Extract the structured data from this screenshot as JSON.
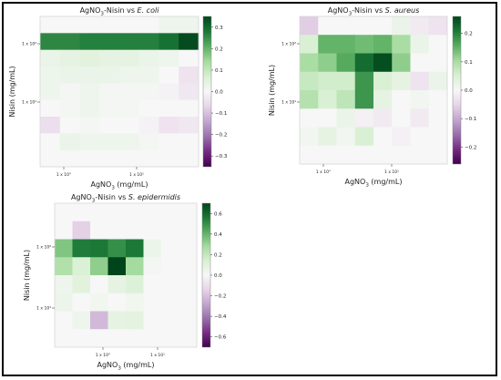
{
  "chart_data": [
    {
      "type": "heatmap",
      "title_parts": {
        "pre": "AgNO",
        "sub": "3",
        "post": "-Nisin vs ",
        "italic": "E. coli"
      },
      "xlabel_parts": {
        "pre": "AgNO",
        "sub": "3",
        "post": " (mg/mL)"
      },
      "ylabel": "Nisin (mg/mL)",
      "x_ticks": [
        "1 x 10°",
        "1 x 10¹"
      ],
      "y_ticks": [
        "1 x 10²",
        "1 x 10¹"
      ],
      "colorbar_ticks": [
        "0.3",
        "0.2",
        "0.1",
        "0.0",
        "−0.1",
        "−0.2",
        "−0.3"
      ],
      "vmin": -0.35,
      "vmax": 0.35,
      "values": [
        [
          0,
          0,
          0,
          0,
          0,
          0,
          0.02,
          0.02
        ],
        [
          0.26,
          0.26,
          0.27,
          0.27,
          0.27,
          0.27,
          0.29,
          0.34
        ],
        [
          0.03,
          0.04,
          0.05,
          0.04,
          0.04,
          0.03,
          0.02,
          0
        ],
        [
          0.02,
          0.03,
          0.03,
          0.03,
          0.02,
          0.02,
          0,
          -0.04
        ],
        [
          0.02,
          0.01,
          0.02,
          0.01,
          0.01,
          0.01,
          -0.01,
          -0.03
        ],
        [
          0,
          0.01,
          0.02,
          0.01,
          0.01,
          0,
          0,
          0
        ],
        [
          -0.05,
          0,
          0.01,
          0,
          0,
          -0.01,
          -0.04,
          -0.03
        ],
        [
          0,
          0.03,
          0.02,
          0.02,
          0.02,
          0.01,
          0,
          0
        ],
        [
          0,
          0,
          0,
          0,
          0,
          0,
          0,
          0
        ]
      ]
    },
    {
      "type": "heatmap",
      "title_parts": {
        "pre": "AgNO",
        "sub": "3",
        "post": "-Nisin vs ",
        "italic": "S. aureus"
      },
      "xlabel_parts": {
        "pre": "AgNO",
        "sub": "3",
        "post": " (mg/mL)"
      },
      "ylabel": "Nisin (mg/mL)",
      "x_ticks": [
        "1 x 10°",
        "1 x 10¹"
      ],
      "y_ticks": [
        "1 x 10²",
        "1 x 10¹"
      ],
      "colorbar_ticks": [
        "0.2",
        "0.1",
        "0.0",
        "−0.1",
        "−0.2"
      ],
      "vmin": -0.26,
      "vmax": 0.26,
      "values": [
        [
          -0.06,
          0,
          0,
          0,
          0,
          0.02,
          -0.02,
          -0.03
        ],
        [
          0.05,
          0.15,
          0.15,
          0.14,
          0.15,
          0.1,
          0.02,
          0
        ],
        [
          0.1,
          0.12,
          0.16,
          0.22,
          0.25,
          0.12,
          0,
          0
        ],
        [
          0.07,
          0.06,
          0.06,
          0.18,
          0.05,
          0.03,
          -0.03,
          0.02
        ],
        [
          0.09,
          0.05,
          0.08,
          0.18,
          0.03,
          0,
          0.01,
          0
        ],
        [
          0,
          0,
          0.02,
          -0.01,
          -0.02,
          0,
          -0.02,
          0
        ],
        [
          0.01,
          0.03,
          0.01,
          0.05,
          0,
          -0.01,
          0,
          0
        ],
        [
          0,
          0,
          0,
          0,
          0,
          0,
          0,
          0
        ]
      ]
    },
    {
      "type": "heatmap",
      "title_parts": {
        "pre": "AgNO",
        "sub": "3",
        "post": "-Nisin vs ",
        "italic": "S. epidermidis"
      },
      "xlabel_parts": {
        "pre": "AgNO",
        "sub": "3",
        "post": " (mg/mL)"
      },
      "ylabel": "Nisin (mg/mL)",
      "x_ticks": [
        "1 x 10°",
        "1 x 10¹"
      ],
      "y_ticks": [
        "1 x 10²",
        "1 x 10¹"
      ],
      "colorbar_ticks": [
        "0.6",
        "0.4",
        "0.2",
        "0.0",
        "−0.2",
        "−0.4",
        "−0.6"
      ],
      "vmin": -0.7,
      "vmax": 0.7,
      "values": [
        [
          0,
          0,
          0,
          0,
          0,
          0,
          0,
          0
        ],
        [
          0,
          -0.15,
          0,
          0,
          0,
          0,
          0,
          0
        ],
        [
          0.35,
          0.55,
          0.56,
          0.5,
          0.56,
          0.05,
          0,
          0
        ],
        [
          0.25,
          0.13,
          0.32,
          0.7,
          0.28,
          0.02,
          0,
          0
        ],
        [
          0.04,
          0.1,
          0,
          0.08,
          0.12,
          0,
          0,
          0
        ],
        [
          0.05,
          0,
          0.03,
          0,
          0.03,
          0,
          0,
          0
        ],
        [
          0,
          0.04,
          -0.22,
          0.08,
          0.09,
          0,
          0,
          0
        ],
        [
          0,
          0,
          0,
          0,
          0,
          0,
          0,
          0
        ]
      ]
    }
  ]
}
